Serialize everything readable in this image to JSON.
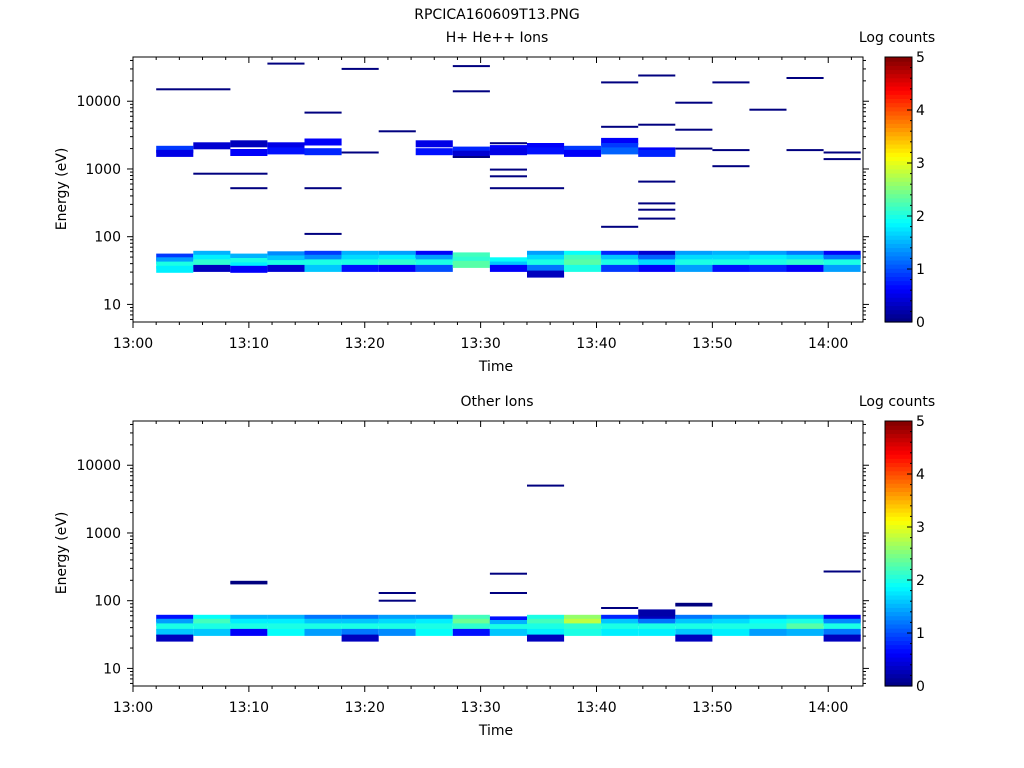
{
  "title": "RPCICA160609T13.PNG",
  "x_ticks": [
    "13:00",
    "13:10",
    "13:20",
    "13:30",
    "13:40",
    "13:50",
    "14:00"
  ],
  "x_tick_minutes": [
    0,
    10,
    20,
    30,
    40,
    50,
    60
  ],
  "xlim_minutes": [
    0,
    63
  ],
  "y_ticks": [
    "10",
    "100",
    "1000",
    "10000"
  ],
  "y_tick_values": [
    10,
    100,
    1000,
    10000
  ],
  "ylim": [
    5.5,
    45000
  ],
  "colorbar_ticks": [
    "0",
    "1",
    "2",
    "3",
    "4",
    "5"
  ],
  "chart_data": [
    {
      "type": "heatmap",
      "title": "H+ He++ Ions",
      "xlabel": "Time",
      "ylabel": "Energy (eV)",
      "colorbar_label": "Log counts",
      "clim": [
        0,
        5
      ],
      "y_scale": "log",
      "cells": [
        [
          2,
          5.2,
          50,
          0.9
        ],
        [
          2,
          5.2,
          44,
          1.4
        ],
        [
          2,
          5.2,
          38,
          2.0
        ],
        [
          2,
          5.2,
          33,
          1.8
        ],
        [
          5.2,
          8.4,
          55,
          1.5
        ],
        [
          5.2,
          8.4,
          48,
          1.8
        ],
        [
          5.2,
          8.4,
          41,
          2.1
        ],
        [
          5.2,
          8.4,
          34,
          0.3
        ],
        [
          8.4,
          11.6,
          50,
          1.5
        ],
        [
          8.4,
          11.6,
          43,
          2.0
        ],
        [
          8.4,
          11.6,
          37,
          1.8
        ],
        [
          8.4,
          11.6,
          33,
          0.6
        ],
        [
          11.6,
          14.8,
          54,
          1.3
        ],
        [
          11.6,
          14.8,
          47,
          1.6
        ],
        [
          11.6,
          14.8,
          40,
          2.0
        ],
        [
          11.6,
          14.8,
          34,
          0.4
        ],
        [
          14.8,
          18,
          55,
          0.9
        ],
        [
          14.8,
          18,
          48,
          1.3
        ],
        [
          14.8,
          18,
          41,
          2.0
        ],
        [
          14.8,
          18,
          34,
          1.6
        ],
        [
          18,
          21.2,
          55,
          1.5
        ],
        [
          18,
          21.2,
          48,
          1.7
        ],
        [
          18,
          21.2,
          41,
          2.0
        ],
        [
          18,
          21.2,
          34,
          0.7
        ],
        [
          21.2,
          24.4,
          55,
          1.4
        ],
        [
          21.2,
          24.4,
          48,
          1.8
        ],
        [
          21.2,
          24.4,
          41,
          2.1
        ],
        [
          21.2,
          24.4,
          34,
          0.6
        ],
        [
          24.4,
          27.6,
          55,
          0.6
        ],
        [
          24.4,
          27.6,
          48,
          1.4
        ],
        [
          24.4,
          27.6,
          41,
          2.0
        ],
        [
          24.4,
          27.6,
          34,
          1.0
        ],
        [
          27.6,
          30.8,
          52,
          2.2
        ],
        [
          27.6,
          30.8,
          45,
          2.1
        ],
        [
          27.6,
          30.8,
          39,
          2.3
        ],
        [
          30.8,
          34,
          44,
          1.9
        ],
        [
          30.8,
          34,
          38,
          1.6
        ],
        [
          30.8,
          34,
          34,
          0.6
        ],
        [
          34,
          37.2,
          55,
          1.4
        ],
        [
          34,
          37.2,
          48,
          1.7
        ],
        [
          34,
          37.2,
          41,
          2.0
        ],
        [
          34,
          37.2,
          34,
          1.2
        ],
        [
          34,
          37.2,
          28,
          0.3
        ],
        [
          37.2,
          40.4,
          55,
          1.9
        ],
        [
          37.2,
          40.4,
          48,
          2.2
        ],
        [
          37.2,
          40.4,
          41,
          2.3
        ],
        [
          37.2,
          40.4,
          34,
          2.0
        ],
        [
          40.4,
          43.6,
          55,
          0.8
        ],
        [
          40.4,
          43.6,
          48,
          1.6
        ],
        [
          40.4,
          43.6,
          41,
          2.0
        ],
        [
          40.4,
          43.6,
          34,
          0.9
        ],
        [
          43.6,
          46.8,
          55,
          0.4
        ],
        [
          43.6,
          46.8,
          48,
          1.1
        ],
        [
          43.6,
          46.8,
          41,
          1.7
        ],
        [
          43.6,
          46.8,
          34,
          0.6
        ],
        [
          46.8,
          50,
          55,
          1.4
        ],
        [
          46.8,
          50,
          48,
          1.7
        ],
        [
          46.8,
          50,
          41,
          2.0
        ],
        [
          46.8,
          50,
          34,
          1.4
        ],
        [
          50,
          53.2,
          55,
          1.5
        ],
        [
          50,
          53.2,
          48,
          1.7
        ],
        [
          50,
          53.2,
          41,
          2.0
        ],
        [
          50,
          53.2,
          34,
          0.7
        ],
        [
          53.2,
          56.4,
          55,
          1.4
        ],
        [
          53.2,
          56.4,
          48,
          1.8
        ],
        [
          53.2,
          56.4,
          41,
          2.0
        ],
        [
          53.2,
          56.4,
          34,
          0.8
        ],
        [
          56.4,
          59.6,
          55,
          1.2
        ],
        [
          56.4,
          59.6,
          48,
          1.7
        ],
        [
          56.4,
          59.6,
          41,
          2.1
        ],
        [
          56.4,
          59.6,
          34,
          0.6
        ],
        [
          59.6,
          62.8,
          55,
          0.6
        ],
        [
          59.6,
          62.8,
          48,
          1.2
        ],
        [
          59.6,
          62.8,
          41,
          2.0
        ],
        [
          59.6,
          62.8,
          34,
          1.4
        ],
        [
          2,
          5.2,
          1950,
          0.9
        ],
        [
          2,
          5.2,
          1700,
          0.5
        ],
        [
          5.2,
          8.4,
          2200,
          0.4
        ],
        [
          8.4,
          11.6,
          2350,
          0.3
        ],
        [
          8.4,
          11.6,
          1750,
          0.6
        ],
        [
          11.6,
          14.8,
          2200,
          0.5
        ],
        [
          11.6,
          14.8,
          1850,
          0.7
        ],
        [
          14.8,
          18,
          2500,
          0.6
        ],
        [
          14.8,
          18,
          1800,
          0.8
        ],
        [
          24.4,
          27.6,
          2350,
          0.5
        ],
        [
          24.4,
          27.6,
          1800,
          0.7
        ],
        [
          27.6,
          30.8,
          1900,
          0.8
        ],
        [
          27.6,
          30.8,
          1650,
          0.4
        ],
        [
          30.8,
          34,
          2000,
          0.6
        ],
        [
          30.8,
          34,
          1800,
          0.5
        ],
        [
          34,
          37.2,
          2150,
          0.6
        ],
        [
          34,
          37.2,
          1850,
          0.7
        ],
        [
          37.2,
          40.4,
          1950,
          0.9
        ],
        [
          37.2,
          40.4,
          1700,
          0.6
        ],
        [
          40.4,
          43.6,
          2550,
          0.6
        ],
        [
          40.4,
          43.6,
          2150,
          0.9
        ],
        [
          40.4,
          43.6,
          1850,
          1.1
        ],
        [
          43.6,
          46.8,
          1850,
          0.6
        ],
        [
          43.6,
          46.8,
          1700,
          0.8
        ]
      ],
      "lines": [
        [
          2,
          8.4,
          15000
        ],
        [
          11.6,
          14.8,
          36000
        ],
        [
          18,
          21.2,
          30000
        ],
        [
          27.6,
          30.8,
          33000
        ],
        [
          40.4,
          43.6,
          19000
        ],
        [
          43.6,
          46.8,
          24000
        ],
        [
          50,
          53.2,
          19000
        ],
        [
          56.4,
          59.6,
          22000
        ],
        [
          14.8,
          18,
          6800
        ],
        [
          21.2,
          24.4,
          3600
        ],
        [
          27.6,
          30.8,
          14000
        ],
        [
          46.8,
          50,
          9500
        ],
        [
          53.2,
          56.4,
          7500
        ],
        [
          40.4,
          43.6,
          4200
        ],
        [
          43.6,
          46.8,
          4500
        ],
        [
          46.8,
          50,
          3800
        ],
        [
          30.8,
          34,
          2400
        ],
        [
          46.8,
          50,
          2000
        ],
        [
          50,
          53.2,
          1900
        ],
        [
          56.4,
          59.6,
          1900
        ],
        [
          59.6,
          62.8,
          1750
        ],
        [
          18,
          21.2,
          1750
        ],
        [
          27.6,
          30.8,
          1500
        ],
        [
          59.6,
          62.8,
          1400
        ],
        [
          50,
          53.2,
          1100
        ],
        [
          30.8,
          34,
          980
        ],
        [
          5.2,
          11.6,
          850
        ],
        [
          30.8,
          34,
          780
        ],
        [
          43.6,
          46.8,
          650
        ],
        [
          8.4,
          11.6,
          520
        ],
        [
          14.8,
          18,
          520
        ],
        [
          30.8,
          37.2,
          520
        ],
        [
          43.6,
          46.8,
          310
        ],
        [
          43.6,
          46.8,
          250
        ],
        [
          43.6,
          46.8,
          185
        ],
        [
          40.4,
          43.6,
          140
        ],
        [
          14.8,
          18,
          110
        ]
      ]
    },
    {
      "type": "heatmap",
      "title": "Other Ions",
      "xlabel": "Time",
      "ylabel": "Energy (eV)",
      "colorbar_label": "Log counts",
      "clim": [
        0,
        5
      ],
      "y_scale": "log",
      "cells": [
        [
          2,
          5.2,
          55,
          0.7
        ],
        [
          2,
          5.2,
          48,
          1.4
        ],
        [
          2,
          5.2,
          41,
          2.0
        ],
        [
          2,
          5.2,
          34,
          1.6
        ],
        [
          2,
          5.2,
          28,
          0.3
        ],
        [
          5.2,
          8.4,
          55,
          1.9
        ],
        [
          5.2,
          8.4,
          48,
          2.2
        ],
        [
          5.2,
          8.4,
          41,
          2.0
        ],
        [
          5.2,
          8.4,
          34,
          1.6
        ],
        [
          8.4,
          11.6,
          55,
          1.5
        ],
        [
          8.4,
          11.6,
          48,
          1.8
        ],
        [
          8.4,
          11.6,
          41,
          2.0
        ],
        [
          8.4,
          11.6,
          34,
          0.6
        ],
        [
          11.6,
          14.8,
          55,
          1.5
        ],
        [
          11.6,
          14.8,
          48,
          1.8
        ],
        [
          11.6,
          14.8,
          41,
          2.0
        ],
        [
          11.6,
          14.8,
          34,
          1.9
        ],
        [
          14.8,
          18,
          55,
          1.2
        ],
        [
          14.8,
          18,
          48,
          1.6
        ],
        [
          14.8,
          18,
          41,
          2.0
        ],
        [
          14.8,
          18,
          34,
          1.4
        ],
        [
          18,
          21.2,
          55,
          1.2
        ],
        [
          18,
          21.2,
          48,
          1.6
        ],
        [
          18,
          21.2,
          41,
          2.0
        ],
        [
          18,
          21.2,
          34,
          1.2
        ],
        [
          18,
          21.2,
          28,
          0.3
        ],
        [
          21.2,
          24.4,
          55,
          1.4
        ],
        [
          21.2,
          24.4,
          48,
          1.7
        ],
        [
          21.2,
          24.4,
          41,
          2.0
        ],
        [
          21.2,
          24.4,
          34,
          1.3
        ],
        [
          24.4,
          27.6,
          55,
          1.4
        ],
        [
          24.4,
          27.6,
          48,
          1.8
        ],
        [
          24.4,
          27.6,
          41,
          2.0
        ],
        [
          24.4,
          27.6,
          34,
          1.9
        ],
        [
          27.6,
          30.8,
          55,
          2.2
        ],
        [
          27.6,
          30.8,
          48,
          2.4
        ],
        [
          27.6,
          30.8,
          41,
          2.1
        ],
        [
          27.6,
          30.8,
          34,
          0.7
        ],
        [
          30.8,
          34,
          52,
          0.7
        ],
        [
          30.8,
          34,
          46,
          1.5
        ],
        [
          30.8,
          34,
          40,
          2.0
        ],
        [
          30.8,
          34,
          34,
          1.6
        ],
        [
          34,
          37.2,
          55,
          2.0
        ],
        [
          34,
          37.2,
          48,
          2.2
        ],
        [
          34,
          37.2,
          41,
          2.0
        ],
        [
          34,
          37.2,
          34,
          1.8
        ],
        [
          34,
          37.2,
          28,
          0.3
        ],
        [
          37.2,
          40.4,
          55,
          2.6
        ],
        [
          37.2,
          40.4,
          48,
          2.8
        ],
        [
          37.2,
          40.4,
          41,
          2.1
        ],
        [
          37.2,
          40.4,
          34,
          2.0
        ],
        [
          40.4,
          43.6,
          55,
          0.8
        ],
        [
          40.4,
          43.6,
          48,
          1.6
        ],
        [
          40.4,
          43.6,
          41,
          2.0
        ],
        [
          40.4,
          43.6,
          34,
          1.8
        ],
        [
          43.6,
          46.8,
          55,
          0.3
        ],
        [
          43.6,
          46.8,
          48,
          1.2
        ],
        [
          43.6,
          46.8,
          41,
          2.0
        ],
        [
          43.6,
          46.8,
          34,
          1.8
        ],
        [
          43.6,
          46.8,
          66,
          0.2
        ],
        [
          46.8,
          50,
          55,
          1.2
        ],
        [
          46.8,
          50,
          48,
          1.6
        ],
        [
          46.8,
          50,
          41,
          2.0
        ],
        [
          46.8,
          50,
          34,
          1.6
        ],
        [
          46.8,
          50,
          28,
          0.3
        ],
        [
          50,
          53.2,
          55,
          1.4
        ],
        [
          50,
          53.2,
          48,
          1.7
        ],
        [
          50,
          53.2,
          41,
          2.0
        ],
        [
          50,
          53.2,
          34,
          1.8
        ],
        [
          53.2,
          56.4,
          55,
          1.5
        ],
        [
          53.2,
          56.4,
          48,
          1.9
        ],
        [
          53.2,
          56.4,
          41,
          2.0
        ],
        [
          53.2,
          56.4,
          34,
          1.4
        ],
        [
          56.4,
          59.6,
          55,
          1.6
        ],
        [
          56.4,
          59.6,
          48,
          2.0
        ],
        [
          56.4,
          59.6,
          41,
          2.3
        ],
        [
          56.4,
          59.6,
          34,
          1.5
        ],
        [
          59.6,
          62.8,
          55,
          0.6
        ],
        [
          59.6,
          62.8,
          48,
          1.3
        ],
        [
          59.6,
          62.8,
          41,
          2.0
        ],
        [
          59.6,
          62.8,
          34,
          1.2
        ],
        [
          59.6,
          62.8,
          28,
          0.3
        ]
      ],
      "lines": [
        [
          34,
          37.2,
          5000
        ],
        [
          59.6,
          62.8,
          270
        ],
        [
          30.8,
          34,
          250
        ],
        [
          8.4,
          11.6,
          190
        ],
        [
          8.4,
          11.6,
          180
        ],
        [
          30.8,
          34,
          130
        ],
        [
          21.2,
          24.4,
          130
        ],
        [
          21.2,
          24.4,
          100
        ],
        [
          46.8,
          50,
          90
        ],
        [
          46.8,
          50,
          85
        ],
        [
          40.4,
          43.6,
          78
        ]
      ]
    }
  ]
}
